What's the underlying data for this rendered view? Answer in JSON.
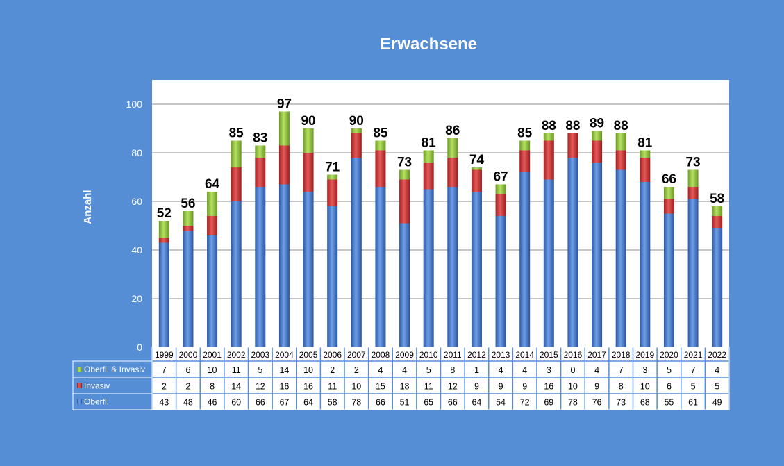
{
  "chart_data": {
    "type": "bar",
    "stacked": true,
    "title": "Erwachsene",
    "ylabel": "Anzahl",
    "ylim": [
      0,
      110
    ],
    "yticks": [
      0,
      20,
      40,
      60,
      80,
      100
    ],
    "grid": true,
    "legend": "data-table-left",
    "categories": [
      "1999",
      "2000",
      "2001",
      "2002",
      "2003",
      "2004",
      "2005",
      "2006",
      "2007",
      "2008",
      "2009",
      "2010",
      "2011",
      "2012",
      "2013",
      "2014",
      "2015",
      "2016",
      "2017",
      "2018",
      "2019",
      "2020",
      "2021",
      "2022"
    ],
    "series": [
      {
        "name": "Oberfl.",
        "color": "#3a6fc4",
        "values": [
          43,
          48,
          46,
          60,
          66,
          67,
          64,
          58,
          78,
          66,
          51,
          65,
          66,
          64,
          54,
          72,
          69,
          78,
          76,
          73,
          68,
          55,
          61,
          49
        ]
      },
      {
        "name": "Invasiv",
        "color": "#d02a2a",
        "values": [
          2,
          2,
          8,
          14,
          12,
          16,
          16,
          11,
          10,
          15,
          18,
          11,
          12,
          9,
          9,
          9,
          16,
          10,
          9,
          8,
          10,
          6,
          5,
          5
        ]
      },
      {
        "name": "Oberfl. & Invasiv",
        "color": "#92c83e",
        "values": [
          7,
          6,
          10,
          11,
          5,
          14,
          10,
          2,
          2,
          4,
          4,
          5,
          8,
          1,
          4,
          4,
          3,
          0,
          4,
          7,
          3,
          5,
          7,
          4
        ]
      }
    ],
    "totals": [
      52,
      56,
      64,
      85,
      83,
      97,
      90,
      71,
      90,
      85,
      73,
      81,
      86,
      74,
      67,
      85,
      88,
      88,
      89,
      88,
      81,
      66,
      73,
      58
    ],
    "table_row_order": [
      "Oberfl. & Invasiv",
      "Invasiv",
      "Oberfl."
    ]
  }
}
